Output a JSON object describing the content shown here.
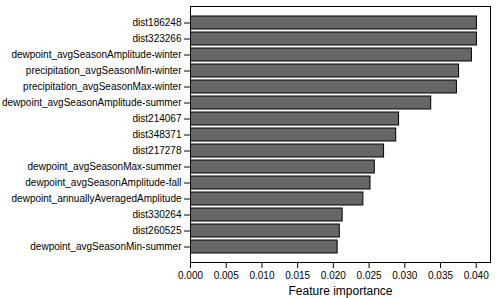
{
  "chart_data": {
    "type": "bar",
    "orientation": "horizontal",
    "xlabel": "Feature importance",
    "categories": [
      "dist186248",
      "dist323266",
      "dewpoint_avgSeasonAmplitude-winter",
      "precipitation_avgSeasonMin-winter",
      "precipitation_avgSeasonMax-winter",
      "dewpoint_avgSeasonAmplitude-summer",
      "dist214067",
      "dist348371",
      "dist217278",
      "dewpoint_avgSeasonMax-summer",
      "dewpoint_avgSeasonAmplitude-fall",
      "dewpoint_annuallyAveragedAmplitude",
      "dist330264",
      "dist260525",
      "dewpoint_avgSeasonMin-summer"
    ],
    "values": [
      0.0401,
      0.0401,
      0.0394,
      0.0376,
      0.0373,
      0.0337,
      0.0292,
      0.0288,
      0.0271,
      0.0258,
      0.0252,
      0.0242,
      0.0213,
      0.0209,
      0.0206
    ],
    "color": "#666666",
    "xlim": [
      0,
      0.042
    ],
    "xticks": [
      {
        "value": 0,
        "label": "0.000"
      },
      {
        "value": 0.005,
        "label": "0.005"
      },
      {
        "value": 0.01,
        "label": "0.010"
      },
      {
        "value": 0.015,
        "label": "0.015"
      },
      {
        "value": 0.02,
        "label": "0.020"
      },
      {
        "value": 0.025,
        "label": "0.025"
      },
      {
        "value": 0.03,
        "label": "0.030"
      },
      {
        "value": 0.035,
        "label": "0.035"
      },
      {
        "value": 0.04,
        "label": "0.040"
      }
    ],
    "grid": false
  }
}
